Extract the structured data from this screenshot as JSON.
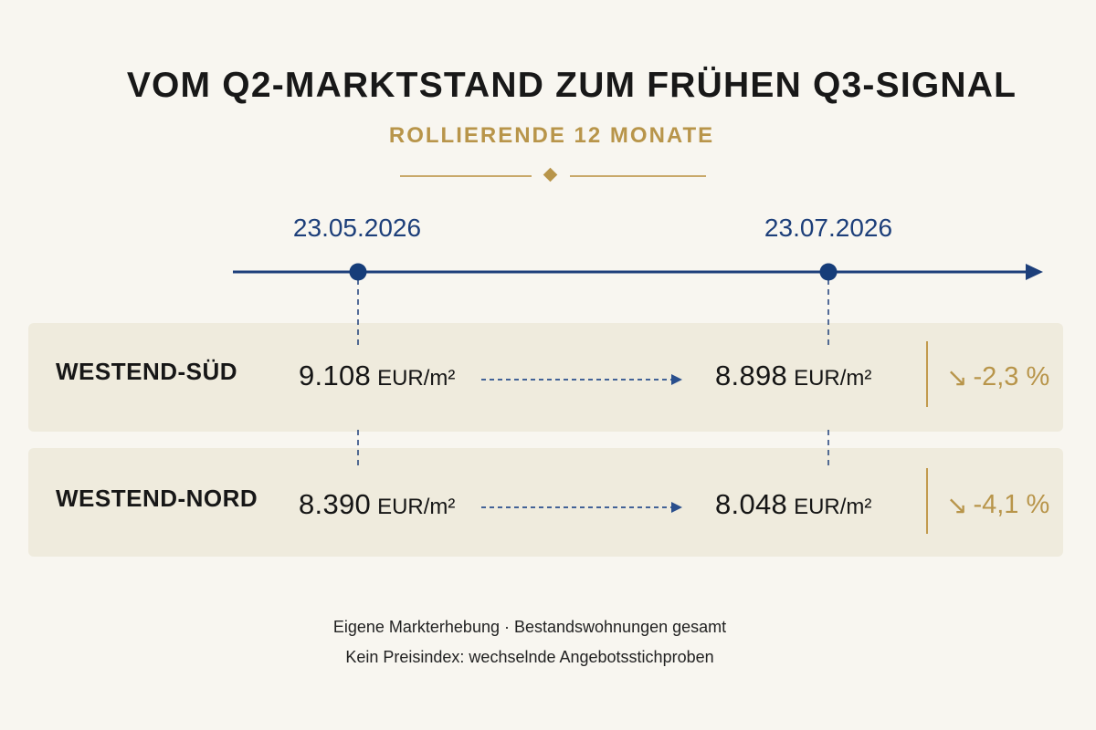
{
  "header": {
    "title": "VOM Q2-MARKTSTAND ZUM FRÜHEN Q3-SIGNAL",
    "subtitle": "ROLLIERENDE 12 MONATE"
  },
  "timeline": {
    "start_date": "23.05.2026",
    "end_date": "23.07.2026"
  },
  "rows": [
    {
      "name": "WESTEND-SÜD",
      "start_value": "9.108",
      "end_value": "8.898",
      "unit": "EUR/m²",
      "change": "-2,3 %",
      "change_icon": "down-right-arrow-icon"
    },
    {
      "name": "WESTEND-NORD",
      "start_value": "8.390",
      "end_value": "8.048",
      "unit": "EUR/m²",
      "change": "-4,1 %",
      "change_icon": "down-right-arrow-icon"
    }
  ],
  "footnotes": [
    "Eigene Markterhebung · Bestandswohnungen gesamt",
    "Kein Preisindex: wechselnde Angebotsstichproben"
  ],
  "chart_data": {
    "type": "table",
    "title": "VOM Q2-MARKTSTAND ZUM FRÜHEN Q3-SIGNAL",
    "subtitle": "ROLLIERENDE 12 MONATE",
    "x": [
      "23.05.2026",
      "23.07.2026"
    ],
    "unit": "EUR/m²",
    "series": [
      {
        "name": "WESTEND-SÜD",
        "values": [
          9108,
          8898
        ],
        "change": "-2,3 %"
      },
      {
        "name": "WESTEND-NORD",
        "values": [
          8390,
          8048
        ],
        "change": "-4,1 %"
      }
    ]
  },
  "colors": {
    "background": "#f8f6f0",
    "row_background": "#efebdd",
    "timeline_blue": "#1d3f7a",
    "accent_gold": "#b8954a",
    "text_dark": "#161616"
  }
}
